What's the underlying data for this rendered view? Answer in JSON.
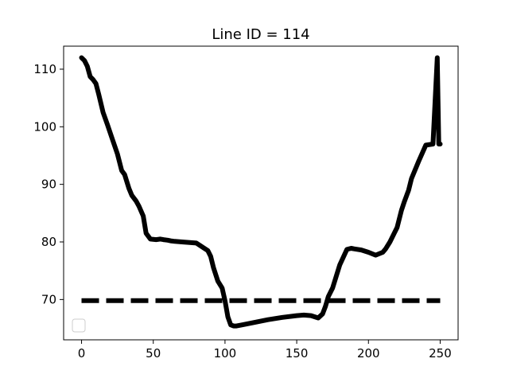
{
  "chart_data": {
    "type": "line",
    "title": "Line ID = 114",
    "xlabel": "",
    "ylabel": "",
    "xlim": [
      -12.5,
      262.5
    ],
    "ylim": [
      63.0,
      114.0
    ],
    "x_ticks": [
      0,
      50,
      100,
      150,
      200,
      250
    ],
    "y_ticks": [
      70,
      80,
      90,
      100,
      110
    ],
    "x_tick_labels": [
      "0",
      "50",
      "100",
      "150",
      "200",
      "250"
    ],
    "y_tick_labels": [
      "70",
      "80",
      "90",
      "100",
      "110"
    ],
    "grid": false,
    "legend": {
      "placement": "lower-left",
      "entries": []
    },
    "series": [
      {
        "style": "solid",
        "color": "#000000",
        "x": [
          0,
          2,
          4,
          6,
          8,
          10,
          12,
          15,
          18,
          21,
          25,
          28,
          30,
          33,
          35,
          38,
          40,
          43,
          45,
          48,
          52,
          55,
          57,
          60,
          62,
          65,
          70,
          80,
          88,
          90,
          92,
          95,
          98,
          100,
          102,
          104,
          106,
          108,
          112,
          120,
          130,
          140,
          150,
          155,
          160,
          165,
          168,
          170,
          172,
          175,
          180,
          185,
          188,
          190,
          195,
          200,
          205,
          210,
          212,
          215,
          218,
          220,
          223,
          225,
          228,
          230,
          235,
          240,
          245,
          248,
          249,
          250
        ],
        "y": [
          112.0,
          111.5,
          110.5,
          108.7,
          108.2,
          107.5,
          105.6,
          102.5,
          100.4,
          98.2,
          95.3,
          92.4,
          91.7,
          89.3,
          88.1,
          87.1,
          86.2,
          84.5,
          81.5,
          80.5,
          80.4,
          80.5,
          80.4,
          80.3,
          80.2,
          80.1,
          80.0,
          79.8,
          78.5,
          77.5,
          75.5,
          73.2,
          72.0,
          69.8,
          67.0,
          65.6,
          65.4,
          65.4,
          65.6,
          66.0,
          66.5,
          66.9,
          67.2,
          67.3,
          67.2,
          66.8,
          67.5,
          68.8,
          70.5,
          72.0,
          76.0,
          78.7,
          78.9,
          78.8,
          78.6,
          78.2,
          77.7,
          78.2,
          78.8,
          80.0,
          81.5,
          82.5,
          85.5,
          87.0,
          89.0,
          91.0,
          94.0,
          96.8,
          97.0,
          112.0,
          97.0,
          97.0
        ]
      },
      {
        "style": "dashed",
        "color": "#000000",
        "x": [
          0,
          250
        ],
        "y": [
          69.8,
          69.8
        ]
      }
    ]
  }
}
